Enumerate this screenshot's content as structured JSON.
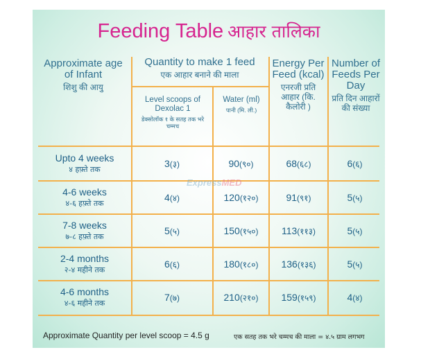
{
  "title": {
    "en": "Feeding Table",
    "hi": "आहार तालिका"
  },
  "headers": {
    "age": {
      "en": "Approximate age of Infant",
      "hi": "शिशु की आयु"
    },
    "quantity": {
      "en": "Quantity to make 1 feed",
      "hi": "एक आहार बनाने की माला"
    },
    "energy": {
      "en": "Energy Per Feed (kcal)",
      "hi": "एनरजी प्रति आहार (कि. कैलोरी )"
    },
    "feeds": {
      "en": "Number of Feeds Per Day",
      "hi": "प्रति दिन आहारों की संख्या"
    },
    "scoops": {
      "en": "Level scoops of Dexolac 1",
      "hi": "डेक्सोलॉक १ के सतह तक भरे चम्मच"
    },
    "water": {
      "en": "Water (ml)",
      "hi": "पानी (मि. ली.)"
    }
  },
  "rows": [
    {
      "age_en": "Upto 4 weeks",
      "age_hi": "४ हफ़्ते तक",
      "scoops": "3",
      "scoops_hi": "(३)",
      "water": "90",
      "water_hi": "(९०)",
      "energy": "68",
      "energy_hi": "(६८)",
      "feeds": "6",
      "feeds_hi": "(६)"
    },
    {
      "age_en": "4-6 weeks",
      "age_hi": "४-६ हफ़्ते तक",
      "scoops": "4",
      "scoops_hi": "(४)",
      "water": "120",
      "water_hi": "(१२०)",
      "energy": "91",
      "energy_hi": "(९१)",
      "feeds": "5",
      "feeds_hi": "(५)"
    },
    {
      "age_en": "7-8 weeks",
      "age_hi": "७-८ हफ़्ते तक",
      "scoops": "5",
      "scoops_hi": "(५)",
      "water": "150",
      "water_hi": "(१५०)",
      "energy": "113",
      "energy_hi": "(११३)",
      "feeds": "5",
      "feeds_hi": "(५)"
    },
    {
      "age_en": "2-4 months",
      "age_hi": "२-४ महीने तक",
      "scoops": "6",
      "scoops_hi": "(६)",
      "water": "180",
      "water_hi": "(१८०)",
      "energy": "136",
      "energy_hi": "(१३६)",
      "feeds": "5",
      "feeds_hi": "(५)"
    },
    {
      "age_en": "4-6 months",
      "age_hi": "४-६ महीने तक",
      "scoops": "7",
      "scoops_hi": "(७)",
      "water": "210",
      "water_hi": "(२१०)",
      "energy": "159",
      "energy_hi": "(१५९)",
      "feeds": "4",
      "feeds_hi": "(४)"
    }
  ],
  "watermark": {
    "a": "Express",
    "b": "MED"
  },
  "footer": {
    "en": "Approximate Quantity per level scoop = 4.5 g",
    "hi": "एक सतह तक भरे चम्मच की माला = ४.५ ग्राम लगभग"
  },
  "colors": {
    "title": "#d6248f",
    "text": "#1d5f86",
    "grid": "#f3b04a",
    "background": "#cfeee3"
  }
}
